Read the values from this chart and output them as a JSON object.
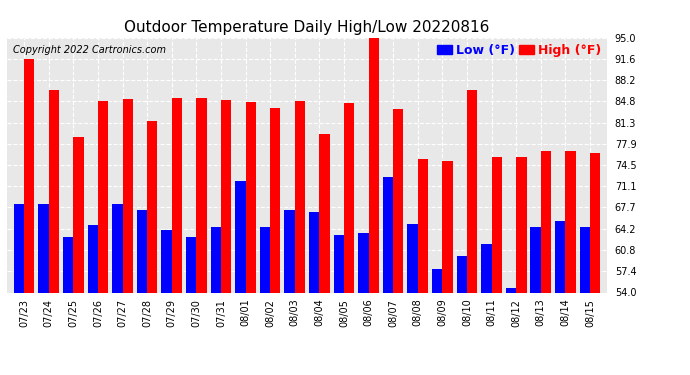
{
  "title": "Outdoor Temperature Daily High/Low 20220816",
  "copyright": "Copyright 2022 Cartronics.com",
  "dates": [
    "07/23",
    "07/24",
    "07/25",
    "07/26",
    "07/27",
    "07/28",
    "07/29",
    "07/30",
    "07/31",
    "08/01",
    "08/02",
    "08/03",
    "08/04",
    "08/05",
    "08/06",
    "08/07",
    "08/08",
    "08/09",
    "08/10",
    "08/11",
    "08/12",
    "08/13",
    "08/14",
    "08/15"
  ],
  "highs": [
    91.6,
    86.5,
    79.0,
    84.8,
    85.1,
    81.5,
    85.2,
    85.2,
    85.0,
    84.6,
    83.6,
    84.8,
    79.5,
    84.5,
    95.0,
    83.5,
    75.5,
    75.2,
    86.5,
    75.8,
    75.8,
    76.8,
    76.8,
    76.5
  ],
  "lows": [
    68.2,
    68.3,
    63.0,
    64.8,
    68.3,
    67.3,
    64.0,
    63.0,
    64.6,
    72.0,
    64.6,
    67.3,
    67.0,
    63.2,
    63.5,
    72.5,
    65.0,
    57.8,
    59.8,
    61.8,
    54.8,
    64.5,
    65.5,
    64.5
  ],
  "ylim_min": 54.0,
  "ylim_max": 95.0,
  "yticks": [
    54.0,
    57.4,
    60.8,
    64.2,
    67.7,
    71.1,
    74.5,
    77.9,
    81.3,
    84.8,
    88.2,
    91.6,
    95.0
  ],
  "bar_color_high": "#ff0000",
  "bar_color_low": "#0000ff",
  "background_color": "#ffffff",
  "title_fontsize": 11,
  "copyright_fontsize": 7,
  "tick_fontsize": 7,
  "legend_fontsize": 9
}
